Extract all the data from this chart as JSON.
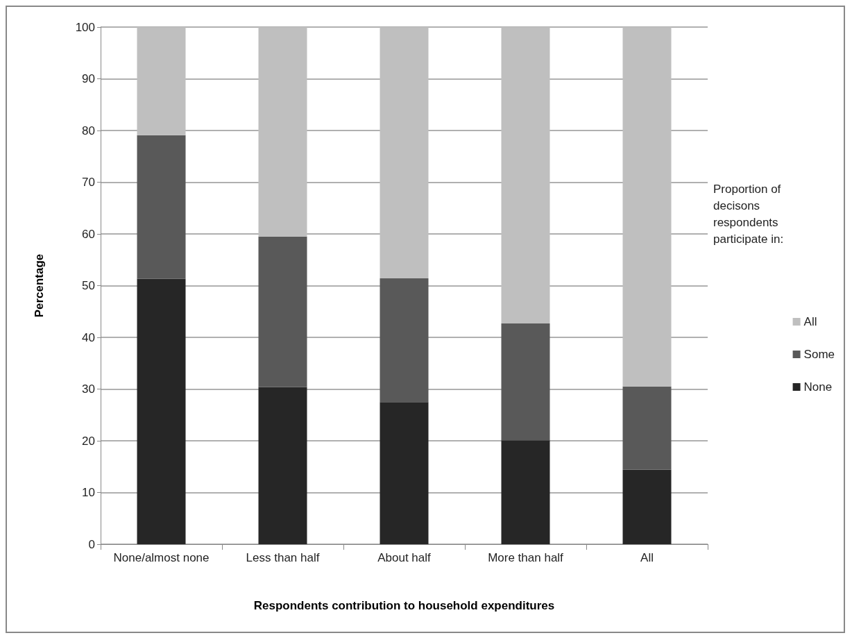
{
  "chart_data": {
    "type": "bar",
    "stacked": true,
    "xlabel": "Respondents contribution to household expenditures",
    "ylabel": "Percentage",
    "legend_title": "Proportion of decisons respondents participate in:",
    "categories": [
      "None/almost none",
      "Less than half",
      "About half",
      "More than half",
      "All"
    ],
    "series": [
      {
        "name": "None",
        "color": "#262626",
        "values": [
          51.3,
          30.4,
          27.5,
          20.1,
          14.4
        ]
      },
      {
        "name": "Some",
        "color": "#595959",
        "values": [
          27.8,
          29.1,
          23.9,
          22.6,
          16.1
        ]
      },
      {
        "name": "All",
        "color": "#bfbfbf",
        "values": [
          20.9,
          40.5,
          48.6,
          57.3,
          69.5
        ]
      }
    ],
    "ylim": [
      0,
      100
    ],
    "yticks": [
      0,
      10,
      20,
      30,
      40,
      50,
      60,
      70,
      80,
      90,
      100
    ],
    "grid": "y",
    "legend": "right"
  }
}
